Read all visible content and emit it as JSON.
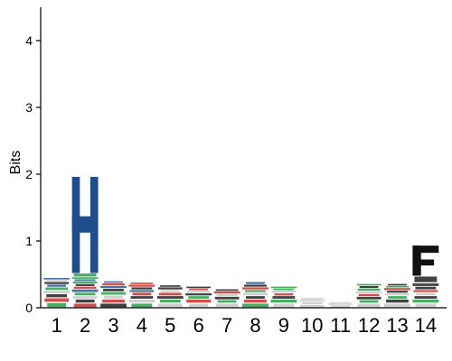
{
  "chart_data": {
    "type": "sequence-logo",
    "ylabel": "Bits",
    "ylim": [
      0,
      4.5
    ],
    "yticks": [
      0,
      1,
      2,
      3,
      4
    ],
    "positions": [
      "1",
      "2",
      "3",
      "4",
      "5",
      "6",
      "7",
      "8",
      "9",
      "10",
      "11",
      "12",
      "13",
      "14"
    ],
    "colors": {
      "blue": "#1f4e8c",
      "green": "#1a9a3c",
      "red": "#c8201e",
      "black": "#111111",
      "gray": "#aaaaaa"
    },
    "stacks": [
      [
        {
          "h": 0.08,
          "c": "green"
        },
        {
          "h": 0.07,
          "c": "red"
        },
        {
          "h": 0.06,
          "c": "black"
        },
        {
          "h": 0.05,
          "c": "gray"
        },
        {
          "h": 0.05,
          "c": "green"
        },
        {
          "h": 0.04,
          "c": "blue"
        },
        {
          "h": 0.04,
          "c": "black"
        },
        {
          "h": 0.03,
          "c": "gray"
        },
        {
          "h": 0.03,
          "c": "blue"
        }
      ],
      [
        {
          "h": 0.07,
          "c": "red"
        },
        {
          "h": 0.06,
          "c": "black"
        },
        {
          "h": 0.05,
          "c": "gray"
        },
        {
          "h": 0.05,
          "c": "green"
        },
        {
          "h": 0.05,
          "c": "blue"
        },
        {
          "h": 0.04,
          "c": "red"
        },
        {
          "h": 0.04,
          "c": "black"
        },
        {
          "h": 0.04,
          "c": "green"
        },
        {
          "h": 0.03,
          "c": "blue"
        },
        {
          "h": 0.03,
          "c": "green"
        },
        {
          "h": 0.06,
          "c": "green"
        },
        {
          "h": 1.44,
          "c": "blue",
          "glyph": "H"
        }
      ],
      [
        {
          "h": 0.07,
          "c": "black"
        },
        {
          "h": 0.06,
          "c": "red"
        },
        {
          "h": 0.06,
          "c": "gray"
        },
        {
          "h": 0.05,
          "c": "green"
        },
        {
          "h": 0.05,
          "c": "black"
        },
        {
          "h": 0.04,
          "c": "blue"
        },
        {
          "h": 0.04,
          "c": "red"
        },
        {
          "h": 0.03,
          "c": "blue"
        }
      ],
      [
        {
          "h": 0.07,
          "c": "green"
        },
        {
          "h": 0.06,
          "c": "gray"
        },
        {
          "h": 0.05,
          "c": "black"
        },
        {
          "h": 0.05,
          "c": "red"
        },
        {
          "h": 0.04,
          "c": "blue"
        },
        {
          "h": 0.04,
          "c": "black"
        },
        {
          "h": 0.04,
          "c": "red"
        },
        {
          "h": 0.03,
          "c": "red"
        }
      ],
      [
        {
          "h": 0.07,
          "c": "gray"
        },
        {
          "h": 0.06,
          "c": "green"
        },
        {
          "h": 0.05,
          "c": "black"
        },
        {
          "h": 0.05,
          "c": "red"
        },
        {
          "h": 0.04,
          "c": "gray"
        },
        {
          "h": 0.04,
          "c": "black"
        },
        {
          "h": 0.03,
          "c": "black"
        }
      ],
      [
        {
          "h": 0.07,
          "c": "gray"
        },
        {
          "h": 0.06,
          "c": "red"
        },
        {
          "h": 0.05,
          "c": "green"
        },
        {
          "h": 0.04,
          "c": "black"
        },
        {
          "h": 0.04,
          "c": "gray"
        },
        {
          "h": 0.03,
          "c": "red"
        },
        {
          "h": 0.03,
          "c": "black"
        }
      ],
      [
        {
          "h": 0.07,
          "c": "gray"
        },
        {
          "h": 0.05,
          "c": "green"
        },
        {
          "h": 0.05,
          "c": "black"
        },
        {
          "h": 0.04,
          "c": "gray"
        },
        {
          "h": 0.04,
          "c": "red"
        },
        {
          "h": 0.03,
          "c": "black"
        }
      ],
      [
        {
          "h": 0.07,
          "c": "green"
        },
        {
          "h": 0.06,
          "c": "red"
        },
        {
          "h": 0.05,
          "c": "black"
        },
        {
          "h": 0.05,
          "c": "gray"
        },
        {
          "h": 0.04,
          "c": "green"
        },
        {
          "h": 0.04,
          "c": "red"
        },
        {
          "h": 0.04,
          "c": "black"
        },
        {
          "h": 0.04,
          "c": "blue"
        }
      ],
      [
        {
          "h": 0.07,
          "c": "gray"
        },
        {
          "h": 0.06,
          "c": "green"
        },
        {
          "h": 0.05,
          "c": "black"
        },
        {
          "h": 0.04,
          "c": "red"
        },
        {
          "h": 0.04,
          "c": "gray"
        },
        {
          "h": 0.03,
          "c": "green"
        },
        {
          "h": 0.03,
          "c": "green"
        }
      ],
      [
        {
          "h": 0.05,
          "c": "gray"
        },
        {
          "h": 0.04,
          "c": "gray"
        },
        {
          "h": 0.03,
          "c": "gray"
        },
        {
          "h": 0.03,
          "c": "gray"
        }
      ],
      [
        {
          "h": 0.04,
          "c": "gray"
        },
        {
          "h": 0.03,
          "c": "gray"
        },
        {
          "h": 0.02,
          "c": "gray"
        }
      ],
      [
        {
          "h": 0.07,
          "c": "gray"
        },
        {
          "h": 0.05,
          "c": "green"
        },
        {
          "h": 0.05,
          "c": "black"
        },
        {
          "h": 0.04,
          "c": "red"
        },
        {
          "h": 0.04,
          "c": "gray"
        },
        {
          "h": 0.04,
          "c": "green"
        },
        {
          "h": 0.04,
          "c": "black"
        },
        {
          "h": 0.03,
          "c": "green"
        }
      ],
      [
        {
          "h": 0.07,
          "c": "gray"
        },
        {
          "h": 0.06,
          "c": "black"
        },
        {
          "h": 0.05,
          "c": "green"
        },
        {
          "h": 0.04,
          "c": "gray"
        },
        {
          "h": 0.04,
          "c": "black"
        },
        {
          "h": 0.04,
          "c": "red"
        },
        {
          "h": 0.03,
          "c": "green"
        },
        {
          "h": 0.03,
          "c": "black"
        }
      ],
      [
        {
          "h": 0.07,
          "c": "gray"
        },
        {
          "h": 0.06,
          "c": "green"
        },
        {
          "h": 0.05,
          "c": "black"
        },
        {
          "h": 0.05,
          "c": "gray"
        },
        {
          "h": 0.04,
          "c": "red"
        },
        {
          "h": 0.05,
          "c": "black"
        },
        {
          "h": 0.05,
          "c": "black"
        },
        {
          "h": 0.11,
          "c": "black"
        },
        {
          "h": 0.45,
          "c": "black",
          "glyph": "F"
        }
      ]
    ]
  }
}
